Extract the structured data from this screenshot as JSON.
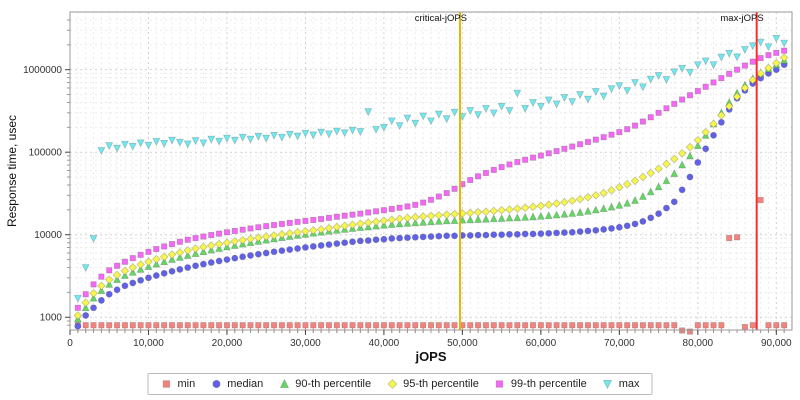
{
  "chart_data": {
    "type": "scatter",
    "title": "",
    "xlabel": "jOPS",
    "ylabel": "Response time, usec",
    "xlim": [
      0,
      92000
    ],
    "ylim": [
      700,
      5000000
    ],
    "y_log": true,
    "grid": true,
    "legend_position": "bottom",
    "background": "#ffffff",
    "plot_border_color": "#999999",
    "x_ticks": [
      0,
      10000,
      20000,
      30000,
      40000,
      50000,
      60000,
      70000,
      80000,
      90000
    ],
    "x_tick_labels": [
      "0",
      "10,000",
      "20,000",
      "30,000",
      "40,000",
      "50,000",
      "60,000",
      "70,000",
      "80,000",
      "90,000"
    ],
    "y_ticks": [
      1000,
      10000,
      100000,
      1000000
    ],
    "y_tick_labels": [
      "1000",
      "10000",
      "100000",
      "1000000"
    ],
    "annotations": [
      {
        "label": "critical-jOPS",
        "x": 49700,
        "color": "#e3b800"
      },
      {
        "label": "max-jOPS",
        "x": 87500,
        "color": "#ff2a2a"
      }
    ],
    "x_start": 1000,
    "x_step": 1000,
    "series": [
      {
        "name": "min",
        "marker": "square",
        "color": "#f4837d",
        "stem_to_axis_below": 1500,
        "values": [
          800,
          800,
          800,
          800,
          800,
          800,
          800,
          800,
          800,
          800,
          800,
          800,
          800,
          800,
          800,
          800,
          800,
          800,
          800,
          800,
          800,
          800,
          800,
          800,
          800,
          800,
          800,
          800,
          800,
          800,
          800,
          800,
          800,
          800,
          800,
          800,
          800,
          800,
          800,
          800,
          800,
          800,
          800,
          800,
          800,
          800,
          800,
          800,
          800,
          800,
          800,
          800,
          800,
          800,
          800,
          800,
          800,
          800,
          800,
          800,
          800,
          800,
          800,
          800,
          800,
          800,
          800,
          800,
          800,
          800,
          800,
          800,
          800,
          800,
          800,
          800,
          800,
          690,
          670,
          800,
          800,
          800,
          800,
          9100,
          9300,
          760,
          800,
          26300,
          800,
          800,
          800
        ]
      },
      {
        "name": "median",
        "marker": "circle",
        "color": "#6161e8",
        "values": [
          780,
          1050,
          1300,
          1600,
          1900,
          2150,
          2400,
          2600,
          2800,
          3000,
          3200,
          3400,
          3600,
          3800,
          4000,
          4200,
          4400,
          4600,
          4800,
          5000,
          5200,
          5400,
          5600,
          5800,
          6000,
          6200,
          6400,
          6600,
          6800,
          7000,
          7200,
          7400,
          7600,
          7800,
          8000,
          8200,
          8400,
          8500,
          8700,
          8800,
          9000,
          9100,
          9200,
          9300,
          9400,
          9500,
          9600,
          9700,
          9700,
          9800,
          9800,
          9900,
          9900,
          10000,
          10000,
          10100,
          10100,
          10200,
          10200,
          10300,
          10400,
          10500,
          10600,
          10700,
          10900,
          11100,
          11300,
          11600,
          11900,
          12300,
          12800,
          13500,
          14500,
          16000,
          18000,
          21000,
          25000,
          35000,
          50000,
          75000,
          110000,
          160000,
          230000,
          330000,
          450000,
          560000,
          680000,
          790000,
          900000,
          1000000,
          1150000
        ]
      },
      {
        "name": "90-th percentile",
        "marker": "triangle-up",
        "color": "#63d763",
        "values": [
          950,
          1300,
          1700,
          2100,
          2500,
          2850,
          3200,
          3500,
          3800,
          4100,
          4400,
          4700,
          5000,
          5300,
          5600,
          5900,
          6200,
          6500,
          6800,
          7100,
          7400,
          7700,
          8000,
          8300,
          8600,
          8900,
          9200,
          9500,
          9800,
          10100,
          10400,
          10700,
          11000,
          11300,
          11600,
          11900,
          12200,
          12400,
          12700,
          13000,
          13300,
          13500,
          13700,
          13900,
          14100,
          14300,
          14500,
          14700,
          14800,
          15000,
          15100,
          15300,
          15400,
          15600,
          15700,
          15900,
          16000,
          16200,
          16400,
          16700,
          17000,
          17300,
          17700,
          18100,
          18600,
          19200,
          19900,
          20700,
          21600,
          22700,
          24000,
          26000,
          29000,
          33000,
          38000,
          45000,
          55000,
          70000,
          90000,
          120000,
          160000,
          220000,
          300000,
          400000,
          520000,
          650000,
          780000,
          900000,
          1020000,
          1150000,
          1300000
        ]
      },
      {
        "name": "95-th percentile",
        "marker": "diamond",
        "color": "#f5f54e",
        "values": [
          1050,
          1500,
          1950,
          2400,
          2850,
          3250,
          3650,
          4000,
          4350,
          4700,
          5050,
          5400,
          5750,
          6100,
          6450,
          6800,
          7100,
          7400,
          7700,
          8000,
          8300,
          8600,
          8900,
          9200,
          9500,
          9800,
          10100,
          10400,
          10700,
          11000,
          11300,
          11600,
          12000,
          12400,
          12800,
          13200,
          13600,
          14000,
          14400,
          14800,
          15200,
          15600,
          16000,
          16300,
          16600,
          16900,
          17200,
          17500,
          17800,
          18100,
          18400,
          18700,
          19000,
          19400,
          19800,
          20200,
          20700,
          21200,
          21800,
          22400,
          23100,
          23900,
          24800,
          25800,
          27000,
          28400,
          30000,
          32000,
          34500,
          37500,
          41000,
          45000,
          50000,
          56000,
          63000,
          72000,
          83000,
          97000,
          115000,
          140000,
          175000,
          220000,
          280000,
          360000,
          470000,
          600000,
          750000,
          900000,
          1050000,
          1200000,
          1400000
        ]
      },
      {
        "name": "99-th percentile",
        "marker": "square",
        "color": "#f567f5",
        "values": [
          1300,
          1900,
          2500,
          3100,
          3700,
          4200,
          4700,
          5200,
          5700,
          6200,
          6700,
          7200,
          7700,
          8200,
          8700,
          9100,
          9500,
          9900,
          10300,
          10700,
          11100,
          11500,
          11900,
          12300,
          12700,
          13100,
          13500,
          13900,
          14300,
          14700,
          15100,
          15500,
          16000,
          16500,
          17000,
          17500,
          18000,
          18600,
          19200,
          19800,
          20500,
          21200,
          22000,
          23000,
          24500,
          26500,
          29000,
          32000,
          36000,
          41000,
          46000,
          51000,
          56000,
          61000,
          66000,
          71000,
          76000,
          81000,
          86000,
          91000,
          97000,
          103000,
          110000,
          117000,
          125000,
          133000,
          142000,
          152000,
          163000,
          175000,
          190000,
          210000,
          235000,
          265000,
          300000,
          340000,
          385000,
          435000,
          490000,
          550000,
          620000,
          700000,
          790000,
          890000,
          1000000,
          1120000,
          1250000,
          1380000,
          1500000,
          1600000,
          1700000
        ]
      },
      {
        "name": "max",
        "marker": "triangle-down",
        "color": "#6fe9ef",
        "values": [
          1700,
          4000,
          9000,
          105000,
          120000,
          112000,
          125000,
          118000,
          130000,
          122000,
          135000,
          128000,
          140000,
          132000,
          126000,
          138000,
          130000,
          144000,
          136000,
          148000,
          140000,
          152000,
          144000,
          156000,
          148000,
          160000,
          152000,
          165000,
          157000,
          170000,
          162000,
          175000,
          167000,
          180000,
          172000,
          185000,
          178000,
          310000,
          190000,
          200000,
          240000,
          210000,
          260000,
          225000,
          275000,
          240000,
          290000,
          255000,
          305000,
          270000,
          320000,
          285000,
          340000,
          300000,
          360000,
          320000,
          520000,
          340000,
          400000,
          360000,
          430000,
          385000,
          460000,
          410000,
          500000,
          440000,
          545000,
          480000,
          590000,
          640000,
          560000,
          700000,
          620000,
          770000,
          850000,
          760000,
          940000,
          1040000,
          930000,
          1150000,
          1280000,
          1150000,
          1420000,
          1580000,
          1430000,
          1760000,
          1950000,
          2160000,
          1900000,
          2400000,
          2100000
        ]
      }
    ]
  }
}
